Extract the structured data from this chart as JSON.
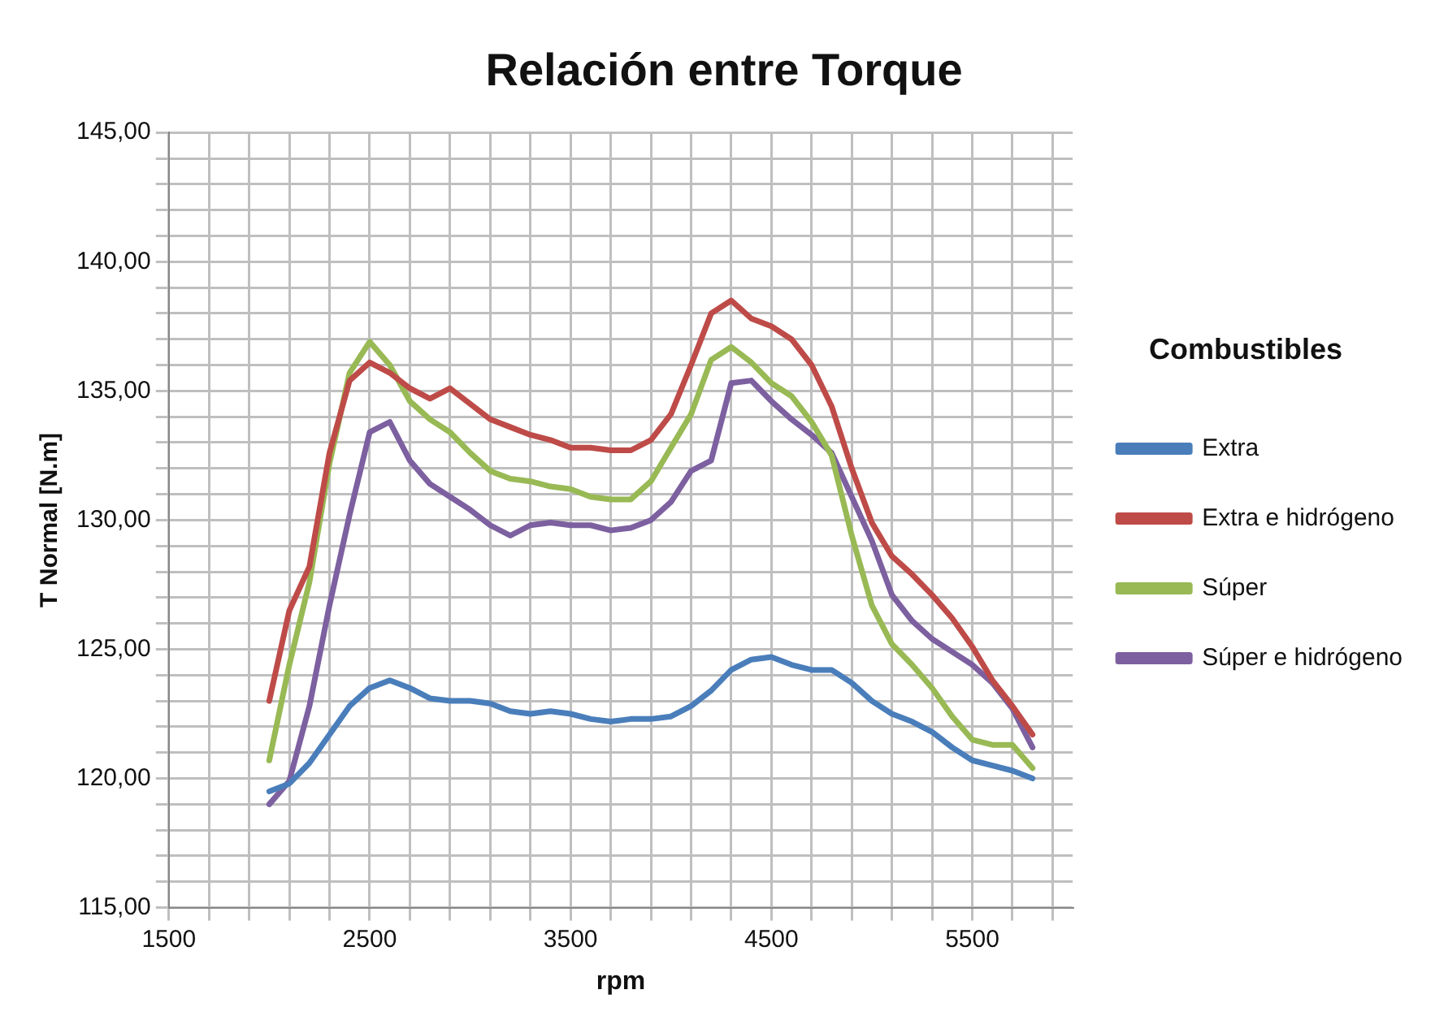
{
  "chart_data": {
    "type": "line",
    "title": "Relación entre Torque",
    "xlabel": "rpm",
    "ylabel": "T Normal [N.m]",
    "legend_title": "Combustibles",
    "x": [
      2000,
      2100,
      2200,
      2300,
      2400,
      2500,
      2600,
      2700,
      2800,
      2900,
      3000,
      3100,
      3200,
      3300,
      3400,
      3500,
      3600,
      3700,
      3800,
      3900,
      4000,
      4100,
      4200,
      4300,
      4400,
      4500,
      4600,
      4700,
      4800,
      4900,
      5000,
      5100,
      5200,
      5300,
      5400,
      5500,
      5600,
      5700,
      5800
    ],
    "series": [
      {
        "name": "Extra",
        "color": "#4a7ebb",
        "values": [
          119.5,
          119.8,
          120.6,
          121.7,
          122.8,
          123.5,
          123.8,
          123.5,
          123.1,
          123.0,
          123.0,
          122.9,
          122.6,
          122.5,
          122.6,
          122.5,
          122.3,
          122.2,
          122.3,
          122.3,
          122.4,
          122.8,
          123.4,
          124.2,
          124.6,
          124.7,
          124.4,
          124.2,
          124.2,
          123.7,
          123.0,
          122.5,
          122.2,
          121.8,
          121.2,
          120.7,
          120.5,
          120.3,
          120.0
        ]
      },
      {
        "name": "Extra e hidrógeno",
        "color": "#be4b48",
        "values": [
          123.0,
          126.5,
          128.2,
          132.6,
          135.4,
          136.1,
          135.7,
          135.1,
          134.7,
          135.1,
          134.5,
          133.9,
          133.6,
          133.3,
          133.1,
          132.8,
          132.8,
          132.7,
          132.7,
          133.1,
          134.1,
          136.0,
          138.0,
          138.5,
          137.8,
          137.5,
          137.0,
          136.0,
          134.4,
          132.0,
          129.9,
          128.6,
          127.9,
          127.1,
          126.2,
          125.1,
          123.8,
          122.8,
          121.7
        ]
      },
      {
        "name": "Súper",
        "color": "#98b954",
        "values": [
          120.7,
          124.4,
          127.6,
          132.2,
          135.7,
          136.9,
          136.0,
          134.6,
          133.9,
          133.4,
          132.6,
          131.9,
          131.6,
          131.5,
          131.3,
          131.2,
          130.9,
          130.8,
          130.8,
          131.5,
          132.8,
          134.1,
          136.2,
          136.7,
          136.1,
          135.3,
          134.8,
          133.8,
          132.5,
          129.4,
          126.7,
          125.2,
          124.4,
          123.5,
          122.4,
          121.5,
          121.3,
          121.3,
          120.4
        ]
      },
      {
        "name": "Súper e hidrógeno",
        "color": "#7d60a0",
        "values": [
          119.0,
          119.9,
          122.8,
          126.7,
          130.2,
          133.4,
          133.8,
          132.3,
          131.4,
          130.9,
          130.4,
          129.8,
          129.4,
          129.8,
          129.9,
          129.8,
          129.8,
          129.6,
          129.7,
          130.0,
          130.7,
          131.9,
          132.3,
          135.3,
          135.4,
          134.6,
          133.9,
          133.3,
          132.6,
          130.9,
          129.2,
          127.1,
          126.1,
          125.4,
          124.9,
          124.4,
          123.7,
          122.7,
          121.2
        ]
      }
    ],
    "xlim": [
      1500,
      6000
    ],
    "xticks": [
      1500,
      {
        "value": 1700,
        "label": null
      },
      {
        "value": 1900,
        "label": null
      },
      {
        "value": 2100,
        "label": null
      },
      {
        "value": 2300,
        "label": null
      },
      2500,
      {
        "value": 2700,
        "label": null
      },
      {
        "value": 2900,
        "label": null
      },
      {
        "value": 3100,
        "label": null
      },
      {
        "value": 3300,
        "label": null
      },
      3500,
      {
        "value": 3700,
        "label": null
      },
      {
        "value": 3900,
        "label": null
      },
      {
        "value": 4100,
        "label": null
      },
      {
        "value": 4300,
        "label": null
      },
      4500,
      {
        "value": 4700,
        "label": null
      },
      {
        "value": 4900,
        "label": null
      },
      {
        "value": 5100,
        "label": null
      },
      {
        "value": 5300,
        "label": null
      },
      5500,
      {
        "value": 5700,
        "label": null
      },
      {
        "value": 5900,
        "label": null
      }
    ],
    "ylim": [
      115,
      145
    ],
    "yticks": [
      {
        "value": 115,
        "label": "115,00"
      },
      {
        "value": 116,
        "label": null
      },
      {
        "value": 117,
        "label": null
      },
      {
        "value": 118,
        "label": null
      },
      {
        "value": 119,
        "label": null
      },
      {
        "value": 120,
        "label": "120,00"
      },
      {
        "value": 121,
        "label": null
      },
      {
        "value": 122,
        "label": null
      },
      {
        "value": 123,
        "label": null
      },
      {
        "value": 124,
        "label": null
      },
      {
        "value": 125,
        "label": "125,00"
      },
      {
        "value": 126,
        "label": null
      },
      {
        "value": 127,
        "label": null
      },
      {
        "value": 128,
        "label": null
      },
      {
        "value": 129,
        "label": null
      },
      {
        "value": 130,
        "label": "130,00"
      },
      {
        "value": 131,
        "label": null
      },
      {
        "value": 132,
        "label": null
      },
      {
        "value": 133,
        "label": null
      },
      {
        "value": 134,
        "label": null
      },
      {
        "value": 135,
        "label": "135,00"
      },
      {
        "value": 136,
        "label": null
      },
      {
        "value": 137,
        "label": null
      },
      {
        "value": 138,
        "label": null
      },
      {
        "value": 139,
        "label": null
      },
      {
        "value": 140,
        "label": "140,00"
      },
      {
        "value": 141,
        "label": null
      },
      {
        "value": 142,
        "label": null
      },
      {
        "value": 143,
        "label": null
      },
      {
        "value": 144,
        "label": null
      },
      {
        "value": 145,
        "label": "145,00"
      }
    ],
    "grid": true,
    "legend": "right",
    "marker": "none",
    "line_style": "solid"
  }
}
